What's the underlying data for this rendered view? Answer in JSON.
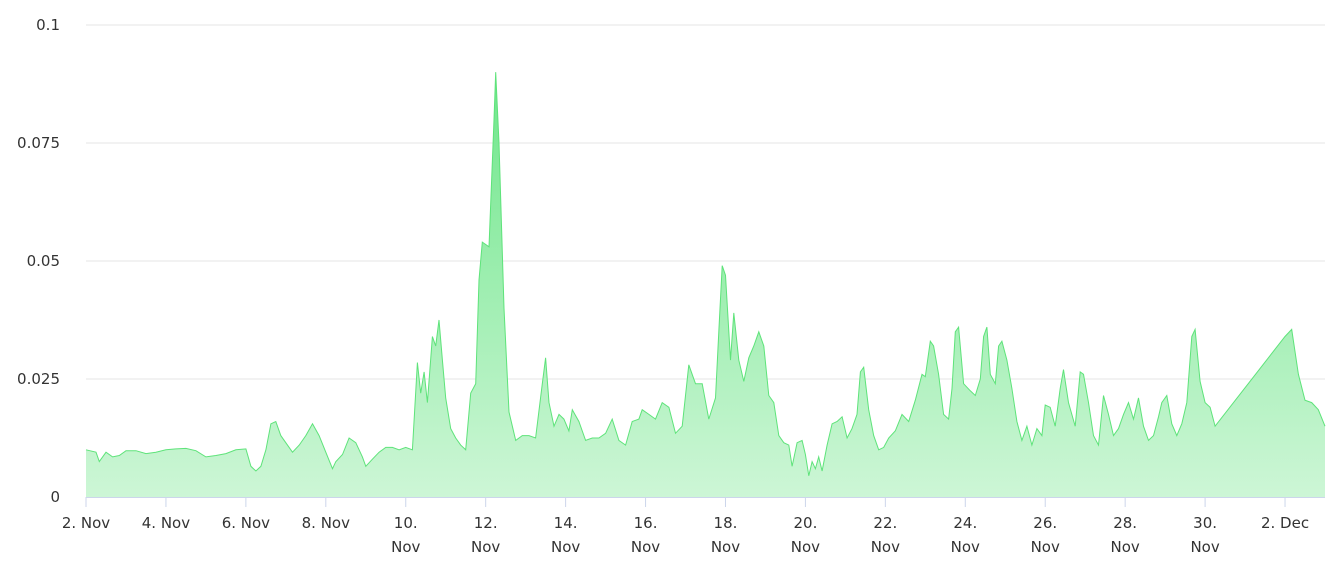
{
  "chart_data": {
    "type": "area",
    "title": "",
    "xlabel": "",
    "ylabel": "",
    "x_range": [
      "2023-11-02",
      "2023-12-03"
    ],
    "ylim": [
      0,
      0.1
    ],
    "y_ticks": [
      {
        "value": 0,
        "label": "0"
      },
      {
        "value": 0.025,
        "label": "0.025"
      },
      {
        "value": 0.05,
        "label": "0.05"
      },
      {
        "value": 0.075,
        "label": "0.075"
      },
      {
        "value": 0.1,
        "label": "0.1"
      }
    ],
    "x_ticks": [
      {
        "date": "2023-11-02",
        "lines": [
          "2. Nov"
        ]
      },
      {
        "date": "2023-11-04",
        "lines": [
          "4. Nov"
        ]
      },
      {
        "date": "2023-11-06",
        "lines": [
          "6. Nov"
        ]
      },
      {
        "date": "2023-11-08",
        "lines": [
          "8. Nov"
        ]
      },
      {
        "date": "2023-11-10",
        "lines": [
          "10.",
          "Nov"
        ]
      },
      {
        "date": "2023-11-12",
        "lines": [
          "12.",
          "Nov"
        ]
      },
      {
        "date": "2023-11-14",
        "lines": [
          "14.",
          "Nov"
        ]
      },
      {
        "date": "2023-11-16",
        "lines": [
          "16.",
          "Nov"
        ]
      },
      {
        "date": "2023-11-18",
        "lines": [
          "18.",
          "Nov"
        ]
      },
      {
        "date": "2023-11-20",
        "lines": [
          "20.",
          "Nov"
        ]
      },
      {
        "date": "2023-11-22",
        "lines": [
          "22.",
          "Nov"
        ]
      },
      {
        "date": "2023-11-24",
        "lines": [
          "24.",
          "Nov"
        ]
      },
      {
        "date": "2023-11-26",
        "lines": [
          "26.",
          "Nov"
        ]
      },
      {
        "date": "2023-11-28",
        "lines": [
          "28.",
          "Nov"
        ]
      },
      {
        "date": "2023-11-30",
        "lines": [
          "30.",
          "Nov"
        ]
      },
      {
        "date": "2023-12-02",
        "lines": [
          "2. Dec"
        ]
      }
    ],
    "grid": true,
    "legend": "none",
    "colors": {
      "line": "#5ee37a",
      "fill_top": "#6ee68a",
      "fill_bottom": "#cdf6d6"
    },
    "series": [
      {
        "values": [
          [
            "2023-11-02 00:00",
            0.01
          ],
          [
            "2023-11-02 06:00",
            0.0095
          ],
          [
            "2023-11-02 08:00",
            0.0075
          ],
          [
            "2023-11-02 12:00",
            0.0095
          ],
          [
            "2023-11-02 16:00",
            0.0085
          ],
          [
            "2023-11-02 20:00",
            0.0088
          ],
          [
            "2023-11-03 00:00",
            0.0098
          ],
          [
            "2023-11-03 06:00",
            0.0098
          ],
          [
            "2023-11-03 12:00",
            0.0092
          ],
          [
            "2023-11-03 18:00",
            0.0095
          ],
          [
            "2023-11-04 00:00",
            0.01
          ],
          [
            "2023-11-04 06:00",
            0.0102
          ],
          [
            "2023-11-04 12:00",
            0.0103
          ],
          [
            "2023-11-04 18:00",
            0.0098
          ],
          [
            "2023-11-05 00:00",
            0.0085
          ],
          [
            "2023-11-05 06:00",
            0.0088
          ],
          [
            "2023-11-05 12:00",
            0.0092
          ],
          [
            "2023-11-05 18:00",
            0.01
          ],
          [
            "2023-11-06 00:00",
            0.0102
          ],
          [
            "2023-11-06 03:00",
            0.0065
          ],
          [
            "2023-11-06 06:00",
            0.0055
          ],
          [
            "2023-11-06 09:00",
            0.0065
          ],
          [
            "2023-11-06 12:00",
            0.01
          ],
          [
            "2023-11-06 15:00",
            0.0155
          ],
          [
            "2023-11-06 18:00",
            0.016
          ],
          [
            "2023-11-06 21:00",
            0.013
          ],
          [
            "2023-11-07 00:00",
            0.0115
          ],
          [
            "2023-11-07 04:00",
            0.0095
          ],
          [
            "2023-11-07 08:00",
            0.011
          ],
          [
            "2023-11-07 12:00",
            0.013
          ],
          [
            "2023-11-07 16:00",
            0.0155
          ],
          [
            "2023-11-07 20:00",
            0.013
          ],
          [
            "2023-11-08 00:00",
            0.0095
          ],
          [
            "2023-11-08 04:00",
            0.006
          ],
          [
            "2023-11-08 06:00",
            0.0075
          ],
          [
            "2023-11-08 10:00",
            0.009
          ],
          [
            "2023-11-08 14:00",
            0.0125
          ],
          [
            "2023-11-08 18:00",
            0.0115
          ],
          [
            "2023-11-08 22:00",
            0.0085
          ],
          [
            "2023-11-09 00:00",
            0.0065
          ],
          [
            "2023-11-09 04:00",
            0.008
          ],
          [
            "2023-11-09 08:00",
            0.0095
          ],
          [
            "2023-11-09 12:00",
            0.0105
          ],
          [
            "2023-11-09 16:00",
            0.0105
          ],
          [
            "2023-11-09 20:00",
            0.01
          ],
          [
            "2023-11-10 00:00",
            0.0105
          ],
          [
            "2023-11-10 04:00",
            0.01
          ],
          [
            "2023-11-10 07:00",
            0.0285
          ],
          [
            "2023-11-10 09:00",
            0.022
          ],
          [
            "2023-11-10 11:00",
            0.0265
          ],
          [
            "2023-11-10 13:00",
            0.02
          ],
          [
            "2023-11-10 16:00",
            0.034
          ],
          [
            "2023-11-10 18:00",
            0.032
          ],
          [
            "2023-11-10 20:00",
            0.0375
          ],
          [
            "2023-11-10 22:00",
            0.029
          ],
          [
            "2023-11-11 00:00",
            0.021
          ],
          [
            "2023-11-11 03:00",
            0.0145
          ],
          [
            "2023-11-11 06:00",
            0.0125
          ],
          [
            "2023-11-11 09:00",
            0.011
          ],
          [
            "2023-11-11 12:00",
            0.01
          ],
          [
            "2023-11-11 15:00",
            0.022
          ],
          [
            "2023-11-11 18:00",
            0.024
          ],
          [
            "2023-11-11 20:00",
            0.046
          ],
          [
            "2023-11-11 22:00",
            0.054
          ],
          [
            "2023-11-12 02:00",
            0.053
          ],
          [
            "2023-11-12 05:00",
            0.08
          ],
          [
            "2023-11-12 06:00",
            0.09
          ],
          [
            "2023-11-12 08:00",
            0.075
          ],
          [
            "2023-11-12 11:00",
            0.04
          ],
          [
            "2023-11-12 14:00",
            0.018
          ],
          [
            "2023-11-12 18:00",
            0.012
          ],
          [
            "2023-11-12 22:00",
            0.013
          ],
          [
            "2023-11-13 02:00",
            0.013
          ],
          [
            "2023-11-13 06:00",
            0.0125
          ],
          [
            "2023-11-13 10:00",
            0.024
          ],
          [
            "2023-11-13 12:00",
            0.0295
          ],
          [
            "2023-11-13 14:00",
            0.02
          ],
          [
            "2023-11-13 17:00",
            0.015
          ],
          [
            "2023-11-13 20:00",
            0.0175
          ],
          [
            "2023-11-13 23:00",
            0.0165
          ],
          [
            "2023-11-14 02:00",
            0.014
          ],
          [
            "2023-11-14 04:00",
            0.0185
          ],
          [
            "2023-11-14 08:00",
            0.016
          ],
          [
            "2023-11-14 12:00",
            0.012
          ],
          [
            "2023-11-14 16:00",
            0.0125
          ],
          [
            "2023-11-14 20:00",
            0.0125
          ],
          [
            "2023-11-15 00:00",
            0.0135
          ],
          [
            "2023-11-15 04:00",
            0.0165
          ],
          [
            "2023-11-15 08:00",
            0.012
          ],
          [
            "2023-11-15 12:00",
            0.011
          ],
          [
            "2023-11-15 16:00",
            0.016
          ],
          [
            "2023-11-15 20:00",
            0.0165
          ],
          [
            "2023-11-15 22:00",
            0.0185
          ],
          [
            "2023-11-16 02:00",
            0.0175
          ],
          [
            "2023-11-16 06:00",
            0.0165
          ],
          [
            "2023-11-16 10:00",
            0.02
          ],
          [
            "2023-11-16 14:00",
            0.019
          ],
          [
            "2023-11-16 18:00",
            0.0135
          ],
          [
            "2023-11-16 22:00",
            0.015
          ],
          [
            "2023-11-17 02:00",
            0.028
          ],
          [
            "2023-11-17 06:00",
            0.024
          ],
          [
            "2023-11-17 10:00",
            0.024
          ],
          [
            "2023-11-17 14:00",
            0.0165
          ],
          [
            "2023-11-17 18:00",
            0.021
          ],
          [
            "2023-11-17 20:00",
            0.035
          ],
          [
            "2023-11-17 22:00",
            0.049
          ],
          [
            "2023-11-18 00:00",
            0.047
          ],
          [
            "2023-11-18 03:00",
            0.029
          ],
          [
            "2023-11-18 05:00",
            0.039
          ],
          [
            "2023-11-18 08:00",
            0.029
          ],
          [
            "2023-11-18 11:00",
            0.0245
          ],
          [
            "2023-11-18 14:00",
            0.0295
          ],
          [
            "2023-11-18 17:00",
            0.032
          ],
          [
            "2023-11-18 20:00",
            0.035
          ],
          [
            "2023-11-18 23:00",
            0.032
          ],
          [
            "2023-11-19 02:00",
            0.0215
          ],
          [
            "2023-11-19 05:00",
            0.02
          ],
          [
            "2023-11-19 08:00",
            0.013
          ],
          [
            "2023-11-19 11:00",
            0.0115
          ],
          [
            "2023-11-19 14:00",
            0.011
          ],
          [
            "2023-11-19 16:00",
            0.0065
          ],
          [
            "2023-11-19 19:00",
            0.0115
          ],
          [
            "2023-11-19 22:00",
            0.012
          ],
          [
            "2023-11-20 00:00",
            0.009
          ],
          [
            "2023-11-20 02:00",
            0.0045
          ],
          [
            "2023-11-20 04:00",
            0.0075
          ],
          [
            "2023-11-20 06:00",
            0.006
          ],
          [
            "2023-11-20 08:00",
            0.0085
          ],
          [
            "2023-11-20 10:00",
            0.0055
          ],
          [
            "2023-11-20 13:00",
            0.011
          ],
          [
            "2023-11-20 16:00",
            0.0155
          ],
          [
            "2023-11-20 19:00",
            0.016
          ],
          [
            "2023-11-20 22:00",
            0.017
          ],
          [
            "2023-11-21 01:00",
            0.0125
          ],
          [
            "2023-11-21 04:00",
            0.0145
          ],
          [
            "2023-11-21 07:00",
            0.0175
          ],
          [
            "2023-11-21 09:00",
            0.0265
          ],
          [
            "2023-11-21 11:00",
            0.0275
          ],
          [
            "2023-11-21 14:00",
            0.0185
          ],
          [
            "2023-11-21 17:00",
            0.013
          ],
          [
            "2023-11-21 20:00",
            0.01
          ],
          [
            "2023-11-21 23:00",
            0.0105
          ],
          [
            "2023-11-22 02:00",
            0.0125
          ],
          [
            "2023-11-22 06:00",
            0.014
          ],
          [
            "2023-11-22 10:00",
            0.0175
          ],
          [
            "2023-11-22 14:00",
            0.016
          ],
          [
            "2023-11-22 18:00",
            0.0205
          ],
          [
            "2023-11-22 22:00",
            0.026
          ],
          [
            "2023-11-23 00:00",
            0.0255
          ],
          [
            "2023-11-23 03:00",
            0.033
          ],
          [
            "2023-11-23 05:00",
            0.032
          ],
          [
            "2023-11-23 08:00",
            0.026
          ],
          [
            "2023-11-23 11:00",
            0.0175
          ],
          [
            "2023-11-23 14:00",
            0.0165
          ],
          [
            "2023-11-23 16:00",
            0.023
          ],
          [
            "2023-11-23 18:00",
            0.035
          ],
          [
            "2023-11-23 20:00",
            0.036
          ],
          [
            "2023-11-23 23:00",
            0.024
          ],
          [
            "2023-11-24 03:00",
            0.0225
          ],
          [
            "2023-11-24 06:00",
            0.0215
          ],
          [
            "2023-11-24 09:00",
            0.025
          ],
          [
            "2023-11-24 11:00",
            0.034
          ],
          [
            "2023-11-24 13:00",
            0.036
          ],
          [
            "2023-11-24 15:00",
            0.026
          ],
          [
            "2023-11-24 18:00",
            0.024
          ],
          [
            "2023-11-24 20:00",
            0.032
          ],
          [
            "2023-11-24 22:00",
            0.033
          ],
          [
            "2023-11-25 01:00",
            0.029
          ],
          [
            "2023-11-25 04:00",
            0.023
          ],
          [
            "2023-11-25 07:00",
            0.016
          ],
          [
            "2023-11-25 10:00",
            0.012
          ],
          [
            "2023-11-25 13:00",
            0.015
          ],
          [
            "2023-11-25 16:00",
            0.011
          ],
          [
            "2023-11-25 19:00",
            0.0145
          ],
          [
            "2023-11-25 22:00",
            0.013
          ],
          [
            "2023-11-26 00:00",
            0.0195
          ],
          [
            "2023-11-26 03:00",
            0.019
          ],
          [
            "2023-11-26 06:00",
            0.015
          ],
          [
            "2023-11-26 09:00",
            0.023
          ],
          [
            "2023-11-26 11:00",
            0.027
          ],
          [
            "2023-11-26 14:00",
            0.02
          ],
          [
            "2023-11-26 18:00",
            0.015
          ],
          [
            "2023-11-26 21:00",
            0.0265
          ],
          [
            "2023-11-26 23:00",
            0.026
          ],
          [
            "2023-11-27 02:00",
            0.02
          ],
          [
            "2023-11-27 05:00",
            0.013
          ],
          [
            "2023-11-27 08:00",
            0.011
          ],
          [
            "2023-11-27 11:00",
            0.0215
          ],
          [
            "2023-11-27 14:00",
            0.0175
          ],
          [
            "2023-11-27 17:00",
            0.013
          ],
          [
            "2023-11-27 20:00",
            0.0145
          ],
          [
            "2023-11-27 23:00",
            0.0175
          ],
          [
            "2023-11-28 02:00",
            0.02
          ],
          [
            "2023-11-28 05:00",
            0.0165
          ],
          [
            "2023-11-28 08:00",
            0.021
          ],
          [
            "2023-11-28 11:00",
            0.015
          ],
          [
            "2023-11-28 14:00",
            0.012
          ],
          [
            "2023-11-28 17:00",
            0.013
          ],
          [
            "2023-11-28 20:00",
            0.017
          ],
          [
            "2023-11-28 22:00",
            0.02
          ],
          [
            "2023-11-29 01:00",
            0.0215
          ],
          [
            "2023-11-29 04:00",
            0.0155
          ],
          [
            "2023-11-29 07:00",
            0.013
          ],
          [
            "2023-11-29 10:00",
            0.0155
          ],
          [
            "2023-11-29 13:00",
            0.02
          ],
          [
            "2023-11-29 16:00",
            0.034
          ],
          [
            "2023-11-29 18:00",
            0.0355
          ],
          [
            "2023-11-29 21:00",
            0.0245
          ],
          [
            "2023-11-30 00:00",
            0.02
          ],
          [
            "2023-11-30 03:00",
            0.019
          ],
          [
            "2023-11-30 06:00",
            0.015
          ],
          [
            "2023-12-02 00:00",
            0.034
          ],
          [
            "2023-12-02 04:00",
            0.0355
          ],
          [
            "2023-12-02 08:00",
            0.026
          ],
          [
            "2023-12-02 12:00",
            0.0205
          ],
          [
            "2023-12-02 16:00",
            0.02
          ],
          [
            "2023-12-02 20:00",
            0.0185
          ],
          [
            "2023-12-03 00:00",
            0.015
          ]
        ]
      }
    ]
  }
}
